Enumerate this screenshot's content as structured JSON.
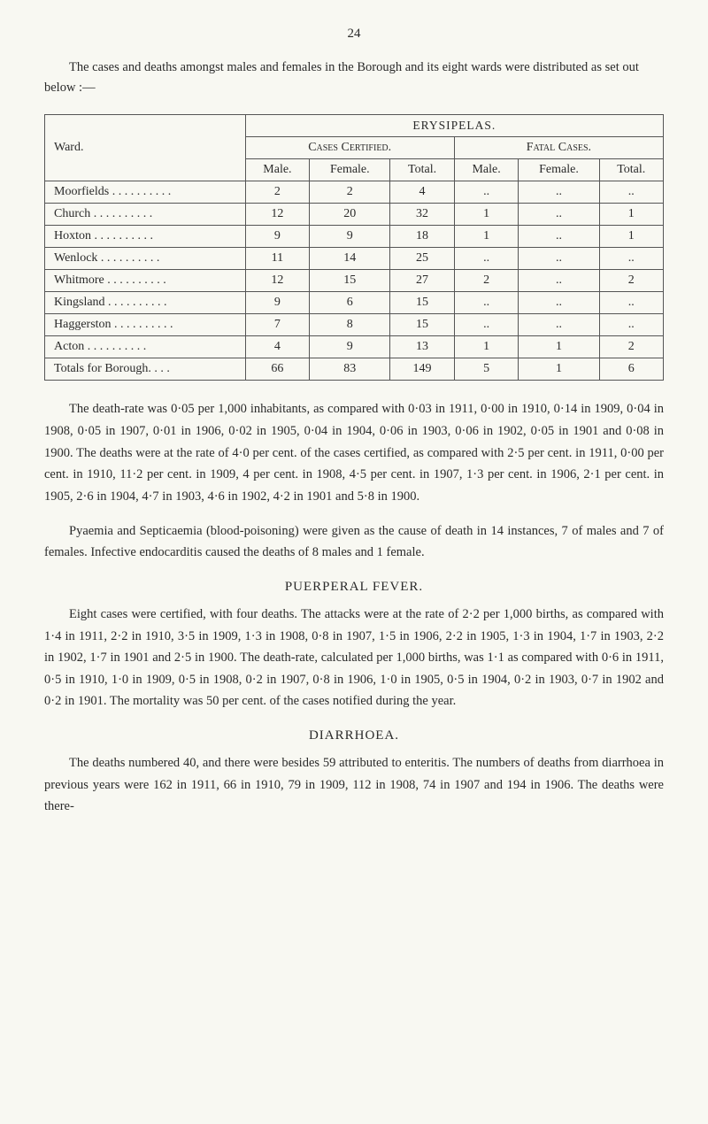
{
  "page_number": "24",
  "intro": "The cases and deaths amongst males and females in the Borough and its eight wards were distributed as set out below :—",
  "table": {
    "super_header": "ERYSIPELAS.",
    "ward_label": "Ward.",
    "group_headers": [
      "Cases Certified.",
      "Fatal Cases."
    ],
    "col_headers": [
      "Male.",
      "Female.",
      "Total.",
      "Male.",
      "Female.",
      "Total."
    ],
    "rows": [
      {
        "ward": "Moorfields",
        "cells": [
          "2",
          "2",
          "4",
          "..",
          "..",
          ".."
        ]
      },
      {
        "ward": "Church",
        "cells": [
          "12",
          "20",
          "32",
          "1",
          "..",
          "1"
        ]
      },
      {
        "ward": "Hoxton",
        "cells": [
          "9",
          "9",
          "18",
          "1",
          "..",
          "1"
        ]
      },
      {
        "ward": "Wenlock",
        "cells": [
          "11",
          "14",
          "25",
          "..",
          "..",
          ".."
        ]
      },
      {
        "ward": "Whitmore",
        "cells": [
          "12",
          "15",
          "27",
          "2",
          "..",
          "2"
        ]
      },
      {
        "ward": "Kingsland",
        "cells": [
          "9",
          "6",
          "15",
          "..",
          "..",
          ".."
        ]
      },
      {
        "ward": "Haggerston",
        "cells": [
          "7",
          "8",
          "15",
          "..",
          "..",
          ".."
        ]
      },
      {
        "ward": "Acton",
        "cells": [
          "4",
          "9",
          "13",
          "1",
          "1",
          "2"
        ]
      }
    ],
    "totals_label": "Totals for Borough. . . .",
    "totals": [
      "66",
      "83",
      "149",
      "5",
      "1",
      "6"
    ]
  },
  "para1": "The death-rate was 0·05 per 1,000 inhabitants, as compared with 0·03 in 1911, 0·00 in 1910, 0·14 in 1909, 0·04 in 1908, 0·05 in 1907, 0·01 in 1906, 0·02 in 1905, 0·04 in 1904, 0·06 in 1903, 0·06 in 1902, 0·05 in 1901 and 0·08 in 1900. The deaths were at the rate of 4·0 per cent. of the cases certified, as compared with 2·5 per cent. in 1911, 0·00 per cent. in 1910, 11·2 per cent. in 1909, 4 per cent. in 1908, 4·5 per cent. in 1907, 1·3 per cent. in 1906, 2·1 per cent. in 1905, 2·6 in 1904, 4·7 in 1903, 4·6 in 1902, 4·2 in 1901 and 5·8 in 1900.",
  "para2": "Pyaemia and Septicaemia (blood-poisoning) were given as the cause of death in 14 instances, 7 of males and 7 of females. Infective endocarditis caused the deaths of 8 males and 1 female.",
  "section1": {
    "title": "PUERPERAL FEVER.",
    "para": "Eight cases were certified, with four deaths. The attacks were at the rate of 2·2 per 1,000 births, as compared with 1·4 in 1911, 2·2 in 1910, 3·5 in 1909, 1·3 in 1908, 0·8 in 1907, 1·5 in 1906, 2·2 in 1905, 1·3 in 1904, 1·7 in 1903, 2·2 in 1902, 1·7 in 1901 and 2·5 in 1900. The death-rate, calculated per 1,000 births, was 1·1 as compared with 0·6 in 1911, 0·5 in 1910, 1·0 in 1909, 0·5 in 1908, 0·2 in 1907, 0·8 in 1906, 1·0 in 1905, 0·5 in 1904, 0·2 in 1903, 0·7 in 1902 and 0·2 in 1901. The mortality was 50 per cent. of the cases notified during the year."
  },
  "section2": {
    "title": "DIARRHOEA.",
    "para": "The deaths numbered 40, and there were besides 59 attributed to enteritis. The numbers of deaths from diarrhoea in previous years were 162 in 1911, 66 in 1910, 79 in 1909, 112 in 1908, 74 in 1907 and 194 in 1906. The deaths were there-"
  },
  "styling": {
    "background_color": "#f8f8f2",
    "text_color": "#2a2a2a",
    "border_color": "#555555",
    "base_fontsize": 14.5,
    "table_fontsize": 14,
    "heading_fontsize": 15
  }
}
